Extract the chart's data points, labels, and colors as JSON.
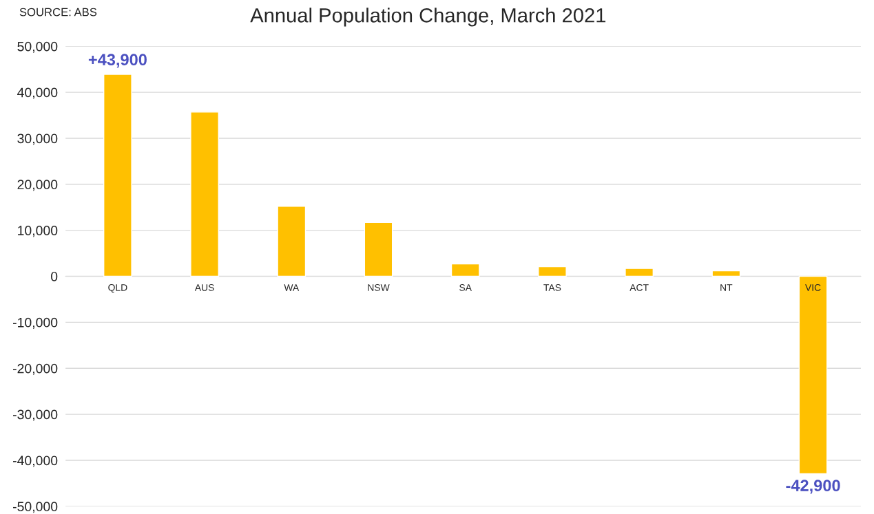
{
  "chart_data": {
    "type": "bar",
    "title": "Annual Population Change, March 2021",
    "annotations": [
      "SOURCE: ABS"
    ],
    "categories": [
      "QLD",
      "AUS",
      "WA",
      "NSW",
      "SA",
      "TAS",
      "ACT",
      "NT",
      "VIC"
    ],
    "values": [
      43900,
      35700,
      15200,
      11700,
      2700,
      2100,
      1700,
      1200,
      -42900
    ],
    "value_labels": [
      "+43,900",
      null,
      null,
      null,
      null,
      null,
      null,
      null,
      "-42,900"
    ],
    "color": "#ffc000",
    "ylim": [
      -50000,
      50000
    ],
    "yticks": [
      {
        "value": -50000,
        "label": "-50,000"
      },
      {
        "value": -40000,
        "label": "-40,000"
      },
      {
        "value": -30000,
        "label": "-30,000"
      },
      {
        "value": -20000,
        "label": "-20,000"
      },
      {
        "value": -10000,
        "label": "-10,000"
      },
      {
        "value": 0,
        "label": "0"
      },
      {
        "value": 10000,
        "label": "10,000"
      },
      {
        "value": 20000,
        "label": "20,000"
      },
      {
        "value": 30000,
        "label": "30,000"
      },
      {
        "value": 40000,
        "label": "40,000"
      },
      {
        "value": 50000,
        "label": "50,000"
      }
    ],
    "grid": "y"
  }
}
